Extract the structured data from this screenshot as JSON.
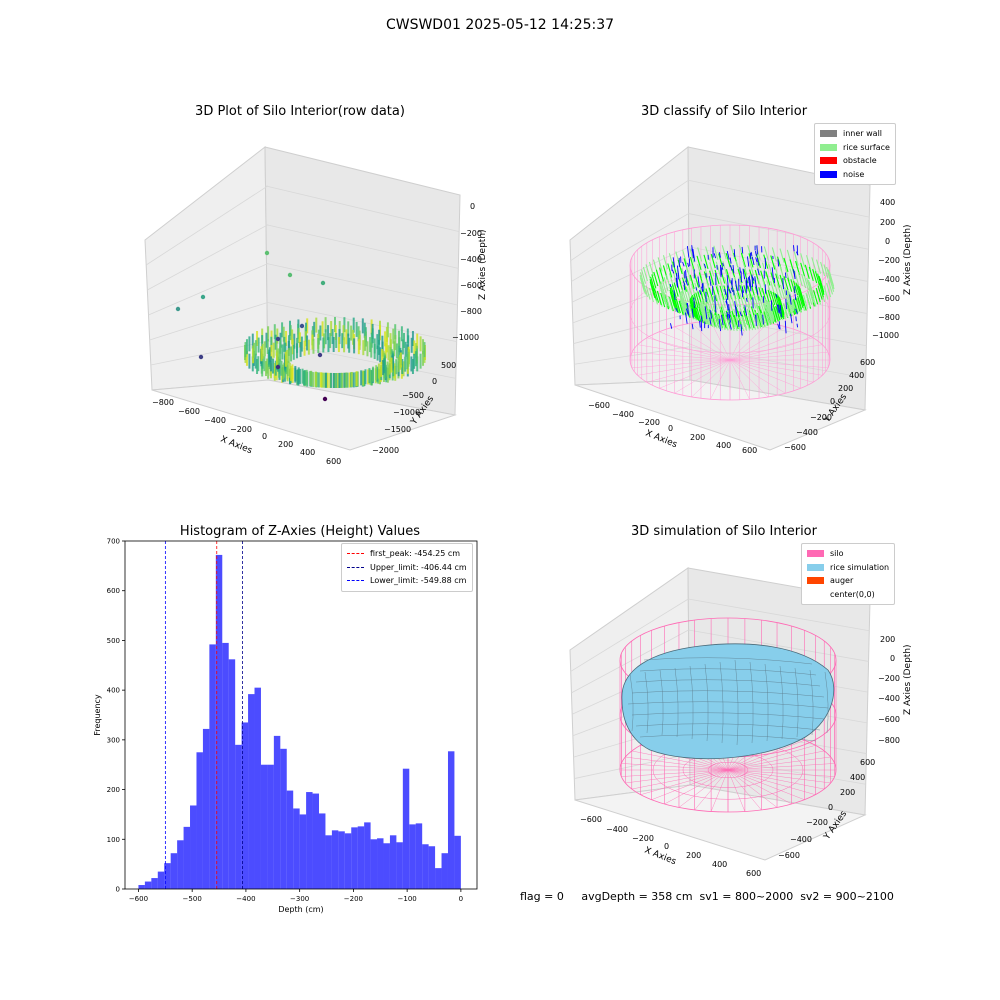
{
  "suptitle": "CWSWD01 2025-05-12 14:25:37",
  "footer": "flag = 0     avgDepth = 358 cm  sv1 = 800~2000  sv2 = 900~2100",
  "chart_data": [
    {
      "type": "scatter",
      "projection": "3d",
      "title": "3D Plot of Silo Interior(row data)",
      "xlabel": "X Axies",
      "ylabel": "Y Axies",
      "zlabel": "Z Axies (Depth)",
      "x_ticks": [
        "−800",
        "−600",
        "−400",
        "−200",
        "0",
        "200",
        "400",
        "600"
      ],
      "y_ticks": [
        "−2000",
        "−1500",
        "−1000",
        "−500",
        "0",
        "500"
      ],
      "z_ticks": [
        "0",
        "−200",
        "−400",
        "−600",
        "−800",
        "−1000"
      ],
      "colormap": "viridis",
      "grid": true
    },
    {
      "type": "scatter",
      "projection": "3d",
      "title": "3D classify of Silo Interior",
      "xlabel": "X Axies",
      "ylabel": "Y Axies",
      "zlabel": "Z Axies (Depth)",
      "x_ticks": [
        "−600",
        "−400",
        "−200",
        "0",
        "200",
        "400",
        "600"
      ],
      "y_ticks": [
        "−600",
        "−400",
        "−200",
        "0",
        "200",
        "400",
        "600"
      ],
      "z_ticks": [
        "400",
        "200",
        "0",
        "−200",
        "−400",
        "−600",
        "−800",
        "−1000"
      ],
      "legend_position": "top-right",
      "legend": [
        {
          "label": "inner wall",
          "color": "#808080"
        },
        {
          "label": "rice surface",
          "color": "#90ee90"
        },
        {
          "label": "obstacle",
          "color": "#ff0000"
        },
        {
          "label": "noise",
          "color": "#0000ff"
        }
      ],
      "grid": true
    },
    {
      "type": "bar",
      "title": "Histogram of Z-Axies (Height) Values",
      "xlabel": "Depth (cm)",
      "ylabel": "Frequency",
      "xlim": [
        -625,
        30
      ],
      "ylim": [
        0,
        700
      ],
      "x_ticks": [
        "−600",
        "−500",
        "−400",
        "−300",
        "−200",
        "−100",
        "0"
      ],
      "y_ticks": [
        "0",
        "100",
        "200",
        "300",
        "400",
        "500",
        "600",
        "700"
      ],
      "bar_color": "#0000ff",
      "bin_start": -600,
      "bin_width": 12,
      "values": [
        8,
        15,
        22,
        35,
        52,
        72,
        98,
        125,
        168,
        275,
        322,
        492,
        672,
        495,
        462,
        290,
        335,
        392,
        405,
        250,
        250,
        308,
        282,
        198,
        162,
        150,
        195,
        192,
        152,
        108,
        118,
        116,
        112,
        124,
        126,
        134,
        100,
        102,
        92,
        108,
        94,
        242,
        130,
        132,
        90,
        86,
        42,
        72,
        277,
        107
      ],
      "legend_position": "top-right",
      "vlines": [
        {
          "label": "first_peak: -454.25 cm",
          "x": -454.25,
          "color": "#ff0000"
        },
        {
          "label": "Upper_limit: -406.44 cm",
          "x": -406.44,
          "color": "#00008b"
        },
        {
          "label": "Lower_limit: -549.88 cm",
          "x": -549.88,
          "color": "#0000ff"
        }
      ]
    },
    {
      "type": "surface",
      "projection": "3d",
      "title": "3D simulation of Silo Interior",
      "xlabel": "X Axies",
      "ylabel": "Y Axies",
      "zlabel": "Z Axies (Depth)",
      "x_ticks": [
        "−600",
        "−400",
        "−200",
        "0",
        "200",
        "400",
        "600"
      ],
      "y_ticks": [
        "−600",
        "−400",
        "−200",
        "0",
        "200",
        "400",
        "600"
      ],
      "z_ticks": [
        "200",
        "0",
        "−200",
        "−400",
        "−600",
        "−800"
      ],
      "legend_position": "top-right",
      "legend": [
        {
          "label": "silo",
          "color": "#ff69b4"
        },
        {
          "label": "rice simulation",
          "color": "#87ceeb"
        },
        {
          "label": "auger",
          "color": "#ff4500"
        },
        {
          "label": "center(0,0)",
          "color": "#ffffff"
        }
      ],
      "grid": true
    }
  ]
}
